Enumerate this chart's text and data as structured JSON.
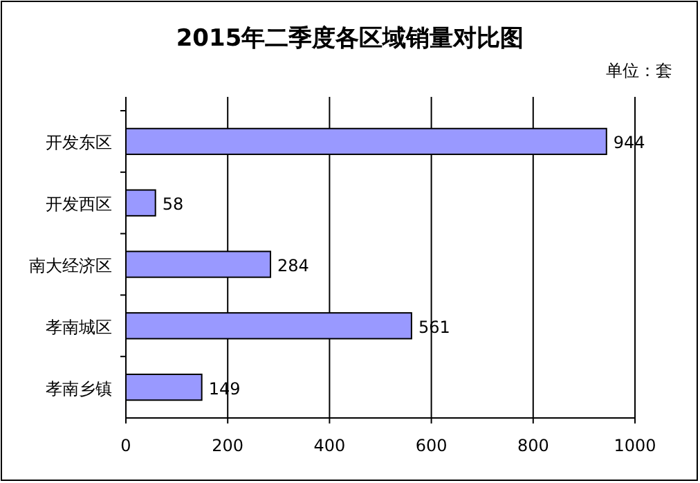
{
  "chart_data": {
    "type": "bar",
    "orientation": "horizontal",
    "title": "2015年二季度各区域销量对比图",
    "annotations": [
      "单位：套"
    ],
    "categories": [
      "开发东区",
      "开发西区",
      "南大经济区",
      "孝南城区",
      "孝南乡镇"
    ],
    "series": [
      {
        "color": "#9999ff",
        "values": [
          944,
          58,
          284,
          561,
          149
        ]
      }
    ],
    "xlim": [
      0,
      1000
    ],
    "xticks": [
      0,
      200,
      400,
      600,
      800,
      1000
    ],
    "grid": "x",
    "data_labels": true
  }
}
